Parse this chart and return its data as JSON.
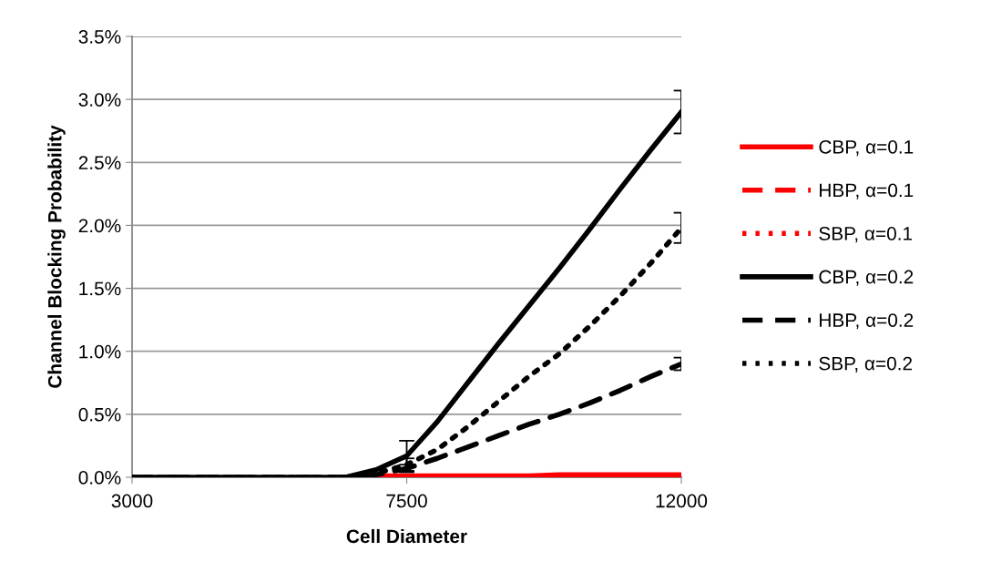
{
  "chart_data": {
    "type": "line",
    "xlabel": "Cell Diameter",
    "ylabel": "Channel Blocking Probability",
    "x": [
      3000,
      4000,
      5000,
      6000,
      6500,
      7000,
      7500,
      8000,
      8500,
      9000,
      9500,
      10000,
      10500,
      11000,
      11500,
      12000
    ],
    "xlim": [
      3000,
      12000
    ],
    "xticks": [
      3000,
      7500,
      12000
    ],
    "ylim": [
      0,
      3.5
    ],
    "yticks": [
      {
        "value": 0,
        "label": "0.0%"
      },
      {
        "value": 0.5,
        "label": "0.5%"
      },
      {
        "value": 1,
        "label": "1.0%"
      },
      {
        "value": 1.5,
        "label": "1.5%"
      },
      {
        "value": 2,
        "label": "2.0%"
      },
      {
        "value": 2.5,
        "label": "2.5%"
      },
      {
        "value": 3,
        "label": "3.0%"
      },
      {
        "value": 3.5,
        "label": "3.5%"
      }
    ],
    "grid": "y",
    "legend": "right",
    "marker": "none",
    "series": [
      {
        "name": "CBP, α=0.1",
        "color": "#ff0000",
        "line_style": "solid",
        "x": [
          6500,
          7000,
          7500,
          8000,
          8500,
          9000,
          9500,
          10000,
          10500,
          11000,
          11500,
          12000
        ],
        "values": [
          0,
          0.01,
          0.01,
          0.01,
          0.01,
          0.01,
          0.01,
          0.02,
          0.02,
          0.02,
          0.02,
          0.02
        ]
      },
      {
        "name": "HBP, α=0.1",
        "color": "#ff0000",
        "line_style": "dashed",
        "values": [
          null,
          null,
          null,
          null,
          null,
          null,
          null,
          null,
          null,
          null,
          null,
          null,
          null,
          null,
          null,
          null
        ]
      },
      {
        "name": "SBP, α=0.1",
        "color": "#ff0000",
        "line_style": "dotted",
        "values": [
          null,
          null,
          null,
          null,
          null,
          null,
          null,
          null,
          null,
          null,
          null,
          null,
          null,
          null,
          null,
          null
        ]
      },
      {
        "name": "CBP, α=0.2",
        "color": "#000000",
        "line_style": "solid",
        "values": [
          0,
          0,
          0,
          0,
          0,
          0.06,
          0.17,
          0.44,
          0.75,
          1.06,
          1.36,
          1.66,
          1.97,
          2.29,
          2.6,
          2.9
        ],
        "errors": [
          null,
          null,
          null,
          null,
          null,
          null,
          0.12,
          null,
          null,
          null,
          null,
          null,
          null,
          null,
          null,
          0.17
        ]
      },
      {
        "name": "HBP, α=0.2",
        "color": "#000000",
        "line_style": "dashed",
        "values": [
          0,
          0,
          0,
          0,
          0,
          0.02,
          0.07,
          0.15,
          0.24,
          0.33,
          0.42,
          0.5,
          0.59,
          0.69,
          0.8,
          0.9
        ],
        "errors": [
          null,
          null,
          null,
          null,
          null,
          null,
          0.03,
          null,
          null,
          null,
          null,
          null,
          null,
          null,
          null,
          0.05
        ]
      },
      {
        "name": "SBP, α=0.2",
        "color": "#000000",
        "line_style": "dotted",
        "values": [
          0,
          0,
          0,
          0,
          0,
          0.03,
          0.1,
          0.22,
          0.4,
          0.6,
          0.8,
          0.98,
          1.2,
          1.44,
          1.7,
          1.98
        ],
        "errors": [
          null,
          null,
          null,
          null,
          null,
          null,
          0.05,
          null,
          null,
          null,
          null,
          null,
          null,
          null,
          null,
          0.12
        ]
      }
    ]
  }
}
